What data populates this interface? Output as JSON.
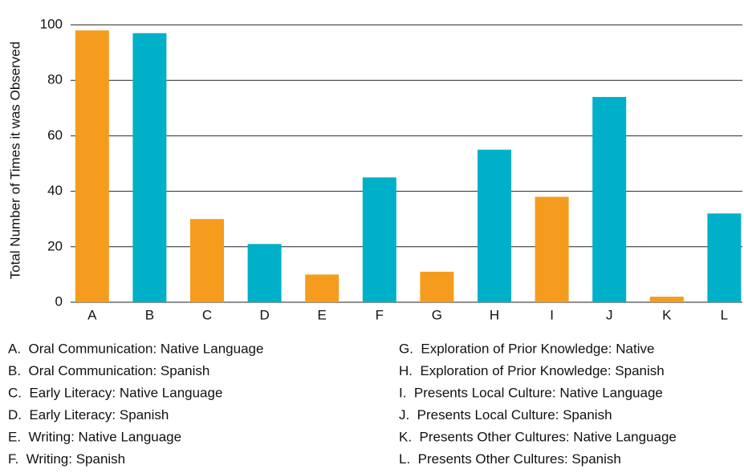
{
  "chart_data": {
    "type": "bar",
    "y_axis_label": "Total Number of Times it was Observed",
    "categories": [
      "A",
      "B",
      "C",
      "D",
      "E",
      "F",
      "G",
      "H",
      "I",
      "J",
      "K",
      "L"
    ],
    "values": [
      98,
      97,
      30,
      21,
      10,
      45,
      11,
      55,
      38,
      74,
      2,
      32
    ],
    "colors": [
      "#f59c1e",
      "#00b0c9",
      "#f59c1e",
      "#00b0c9",
      "#f59c1e",
      "#00b0c9",
      "#f59c1e",
      "#00b0c9",
      "#f59c1e",
      "#00b0c9",
      "#f59c1e",
      "#00b0c9"
    ],
    "ylim": [
      0,
      100
    ],
    "yticks": [
      0,
      20,
      40,
      60,
      80,
      100
    ],
    "grid": true,
    "legend_items": [
      "A.  Oral Communication: Native Language",
      "B.  Oral Communication: Spanish",
      "C.  Early Literacy: Native Language",
      "D.  Early Literacy: Spanish",
      "E.  Writing: Native Language",
      "F.  Writing: Spanish",
      "G.  Exploration of Prior Knowledge: Native",
      "H.  Exploration of Prior Knowledge: Spanish",
      "I.  Presents Local Culture: Native Language",
      "J.  Presents Local Culture: Spanish",
      "K.  Presents Other Cultures: Native Language",
      "L.  Presents Other Cultures: Spanish"
    ]
  }
}
